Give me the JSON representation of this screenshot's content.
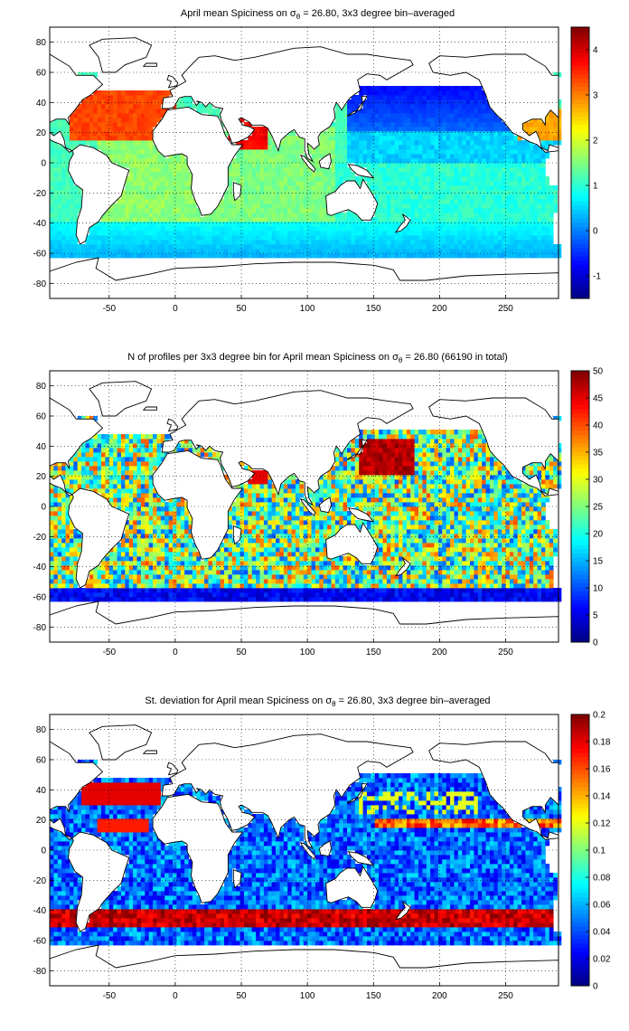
{
  "colors": {
    "land": "#ffffff",
    "frame": "#000000",
    "grid": "#000000",
    "colormap": "jet"
  },
  "chart_data": [
    {
      "type": "heatmap",
      "title": "April mean Spiciness on σθ = 26.80, 3x3 degree bin–averaged",
      "title_parts": {
        "pre": "April mean Spiciness on σ",
        "sub": "θ",
        "post": " = 26.80, 3x3 degree bin–averaged"
      },
      "xlim": [
        -95,
        290
      ],
      "ylim": [
        -90,
        90
      ],
      "xticks": [
        -50,
        0,
        50,
        100,
        150,
        200,
        250
      ],
      "yticks": [
        80,
        60,
        40,
        20,
        0,
        -20,
        -40,
        -60,
        -80
      ],
      "grid": true,
      "colorbar": {
        "min": -1.5,
        "max": 4.5,
        "ticks": [
          4,
          3,
          2,
          1,
          0,
          -1
        ]
      },
      "field_kind": "spice"
    },
    {
      "type": "heatmap",
      "title": "N of profiles per 3x3 degree bin for April mean Spiciness on σθ = 26.80 (66190 in total)",
      "title_parts": {
        "pre": "N of profiles per 3x3 degree bin for April mean Spiciness on σ",
        "sub": "θ",
        "post": " = 26.80 (66190 in total)"
      },
      "xlim": [
        -95,
        290
      ],
      "ylim": [
        -90,
        90
      ],
      "xticks": [
        -50,
        0,
        50,
        100,
        150,
        200,
        250
      ],
      "yticks": [
        80,
        60,
        40,
        20,
        0,
        -20,
        -40,
        -60,
        -80
      ],
      "grid": true,
      "colorbar": {
        "min": 0,
        "max": 50,
        "ticks": [
          50,
          45,
          40,
          35,
          30,
          25,
          20,
          15,
          10,
          5,
          0
        ]
      },
      "field_kind": "count"
    },
    {
      "type": "heatmap",
      "title": "St. deviation for April mean Spiciness on σθ = 26.80, 3x3 degree bin–averaged",
      "title_parts": {
        "pre": "St. deviation for April mean Spiciness on σ",
        "sub": "θ",
        "post": " = 26.80, 3x3 degree bin–averaged"
      },
      "xlim": [
        -95,
        290
      ],
      "ylim": [
        -90,
        90
      ],
      "xticks": [
        -50,
        0,
        50,
        100,
        150,
        200,
        250
      ],
      "yticks": [
        80,
        60,
        40,
        20,
        0,
        -20,
        -40,
        -60,
        -80
      ],
      "grid": true,
      "colorbar": {
        "min": 0,
        "max": 0.2,
        "ticks": [
          0.2,
          0.18,
          0.16,
          0.14,
          0.12,
          0.1,
          0.08,
          0.06,
          0.04,
          0.02,
          0
        ]
      },
      "field_kind": "std"
    }
  ]
}
